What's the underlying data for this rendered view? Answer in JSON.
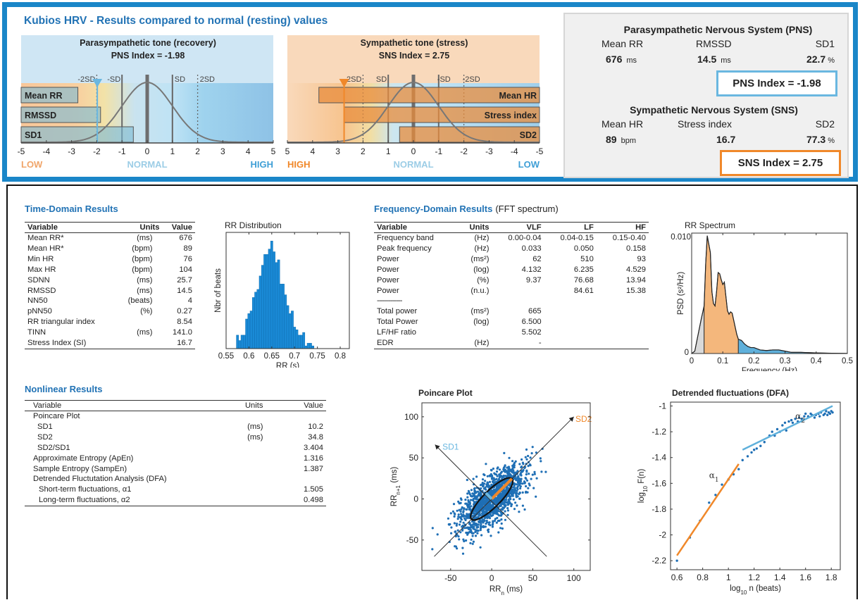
{
  "header": {
    "title": "Kubios HRV - Results compared to normal (resting) values"
  },
  "pns_gauge": {
    "title": "Parasympathetic tone (recovery)",
    "index_label": "PNS Index = -1.98",
    "index_value": -1.98,
    "axis": [
      "-5",
      "-4",
      "-3",
      "-2",
      "-1",
      "0",
      "1",
      "2",
      "3",
      "4",
      "5"
    ],
    "axis_range": [
      -5,
      5
    ],
    "sd_labels": [
      "-2SD",
      "-SD",
      "SD",
      "2SD"
    ],
    "bars": [
      {
        "label": "Mean RR",
        "value": -2.75
      },
      {
        "label": "RMSSD",
        "value": -1.85
      },
      {
        "label": "SD1",
        "value": -0.55
      }
    ],
    "low_label": "LOW",
    "normal_label": "NORMAL",
    "high_label": "HIGH",
    "accent": "#6ab7e0"
  },
  "sns_gauge": {
    "title": "Sympathetic tone (stress)",
    "index_label": "SNS Index = 2.75",
    "index_value": 2.75,
    "axis": [
      "5",
      "4",
      "3",
      "2",
      "1",
      "0",
      "-1",
      "-2",
      "-3",
      "-4",
      "-5"
    ],
    "axis_range": [
      5,
      -5
    ],
    "sd_labels": [
      "2SD",
      "SD",
      "-SD",
      "-2SD"
    ],
    "bars": [
      {
        "label": "Mean HR",
        "value": 3.75
      },
      {
        "label": "Stress index",
        "value": 2.75
      },
      {
        "label": "SD2",
        "value": 0.55
      }
    ],
    "high_label": "HIGH",
    "normal_label": "NORMAL",
    "low_label": "LOW",
    "accent": "#f0882a"
  },
  "summary": {
    "pns_heading": "Parasympathetic Nervous System (PNS)",
    "pns_labels": [
      "Mean RR",
      "RMSSD",
      "SD1"
    ],
    "pns_values": [
      {
        "value": "676",
        "unit": "ms"
      },
      {
        "value": "14.5",
        "unit": "ms"
      },
      {
        "value": "22.7",
        "unit": "%"
      }
    ],
    "pns_index": "PNS Index = -1.98",
    "sns_heading": "Sympathetic Nervous System (SNS)",
    "sns_labels": [
      "Mean HR",
      "Stress index",
      "SD2"
    ],
    "sns_values": [
      {
        "value": "89",
        "unit": "bpm"
      },
      {
        "value": "16.7",
        "unit": ""
      },
      {
        "value": "77.3",
        "unit": "%"
      }
    ],
    "sns_index": "SNS Index = 2.75",
    "pns_color": "#6ab7e0",
    "sns_color": "#f0882a"
  },
  "time_domain": {
    "title": "Time-Domain Results",
    "headers": [
      "Variable",
      "Units",
      "Value"
    ],
    "rows": [
      [
        "Mean RR*",
        "(ms)",
        "676"
      ],
      [
        "Mean HR*",
        "(bpm)",
        "89"
      ],
      [
        "Min HR",
        "(bpm)",
        "76"
      ],
      [
        "Max HR",
        "(bpm)",
        "104"
      ],
      [
        "SDNN",
        "(ms)",
        "25.7"
      ],
      [
        "RMSSD",
        "(ms)",
        "14.5"
      ],
      [
        "NN50",
        "(beats)",
        "4"
      ],
      [
        "pNN50",
        "(%)",
        "0.27"
      ],
      [
        "RR triangular index",
        "",
        "8.54"
      ],
      [
        "TINN",
        "(ms)",
        "141.0"
      ],
      [
        "Stress Index (SI)",
        "",
        "16.7"
      ]
    ]
  },
  "frequency_domain": {
    "title": "Frequency-Domain Results",
    "subtitle": "(FFT spectrum)",
    "headers": [
      "Variable",
      "Units",
      "VLF",
      "LF",
      "HF"
    ],
    "rows": [
      [
        "Frequency band",
        "(Hz)",
        "0.00-0.04",
        "0.04-0.15",
        "0.15-0.40"
      ],
      [
        "Peak frequency",
        "(Hz)",
        "0.033",
        "0.050",
        "0.158"
      ],
      [
        "Power",
        "(ms²)",
        "62",
        "510",
        "93"
      ],
      [
        "Power",
        "(log)",
        "4.132",
        "6.235",
        "4.529"
      ],
      [
        "Power",
        "(%)",
        "9.37",
        "76.68",
        "13.94"
      ],
      [
        "Power",
        "(n.u.)",
        "",
        "84.61",
        "15.38"
      ],
      [
        "-------------",
        "",
        "",
        "",
        ""
      ],
      [
        "Total power",
        "(ms²)",
        "665",
        "",
        ""
      ],
      [
        "Total Power",
        "(log)",
        "6.500",
        "",
        ""
      ],
      [
        "LF/HF ratio",
        "",
        "5.502",
        "",
        ""
      ],
      [
        "EDR",
        "(Hz)",
        "-",
        "",
        ""
      ]
    ]
  },
  "nonlinear": {
    "title": "Nonlinear Results",
    "headers": [
      "Variable",
      "Units",
      "Value"
    ],
    "rows": [
      [
        "Poincare Plot",
        "",
        ""
      ],
      [
        "  SD1",
        "(ms)",
        "10.2"
      ],
      [
        "  SD2",
        "(ms)",
        "34.8"
      ],
      [
        "  SD2/SD1",
        "",
        "3.404"
      ],
      [
        "Approximate Entropy (ApEn)",
        "",
        "1.316"
      ],
      [
        "Sample Entropy (SampEn)",
        "",
        "1.387"
      ],
      [
        "Detrended Fluctutation Analysis (DFA)",
        "",
        ""
      ],
      [
        "  Short-term fluctuations, α1",
        "",
        "1.505"
      ],
      [
        "  Long-term fluctuations, α2",
        "",
        "0.498"
      ]
    ]
  },
  "chart_data": [
    {
      "id": "rr-distribution",
      "type": "bar",
      "title": "RR Distribution",
      "xlabel": "RR (s)",
      "ylabel": "Nbr of beats",
      "xlim": [
        0.55,
        0.82
      ],
      "xticks": [
        "0.55",
        "0.6",
        "0.65",
        "0.7",
        "0.75",
        "0.8"
      ],
      "xtick_values": [
        0.55,
        0.6,
        0.65,
        0.7,
        0.75,
        0.8
      ],
      "bin_start": 0.5725,
      "bin_width": 0.005,
      "values": [
        5,
        3,
        5,
        5,
        11,
        13,
        14,
        19,
        21,
        22,
        27,
        31,
        35,
        35,
        37,
        40,
        36,
        32,
        33,
        24,
        24,
        20,
        16,
        13,
        14,
        8,
        7,
        5,
        5,
        6,
        1,
        2,
        2,
        1
      ],
      "bar_color": "#1a8ad6"
    },
    {
      "id": "rr-spectrum",
      "type": "area",
      "title": "RR Spectrum",
      "xlabel": "Frequency (Hz)",
      "ylabel": "PSD (s²/Hz)",
      "xlim": [
        0,
        0.5
      ],
      "ylim": [
        0,
        0.01
      ],
      "xticks": [
        "0",
        "0.1",
        "0.2",
        "0.3",
        "0.4",
        "0.5"
      ],
      "yticks": [
        "0",
        "0.010"
      ],
      "x": [
        0,
        0.01,
        0.02,
        0.03,
        0.04,
        0.045,
        0.05,
        0.055,
        0.06,
        0.065,
        0.07,
        0.075,
        0.08,
        0.085,
        0.09,
        0.095,
        0.1,
        0.105,
        0.11,
        0.115,
        0.12,
        0.125,
        0.13,
        0.135,
        0.14,
        0.145,
        0.15,
        0.16,
        0.17,
        0.18,
        0.19,
        0.2,
        0.22,
        0.24,
        0.26,
        0.28,
        0.3,
        0.32,
        0.35,
        0.4,
        0.45,
        0.5
      ],
      "y": [
        0,
        0.0002,
        0.0015,
        0.0028,
        0.004,
        0.0075,
        0.0099,
        0.0092,
        0.0085,
        0.0052,
        0.0042,
        0.004,
        0.0052,
        0.0068,
        0.0067,
        0.0062,
        0.0058,
        0.006,
        0.0048,
        0.0036,
        0.0033,
        0.0035,
        0.0034,
        0.0028,
        0.0022,
        0.0016,
        0.0012,
        0.0011,
        0.0008,
        0.0006,
        0.0005,
        0.0005,
        0.0003,
        0.00025,
        0.0003,
        0.0003,
        0.0002,
        0.0001,
        0.0001,
        5e-05,
        2e-05,
        1e-05
      ],
      "bands": [
        {
          "name": "VLF",
          "range": [
            0,
            0.04
          ],
          "color": "#d9d9d9"
        },
        {
          "name": "LF",
          "range": [
            0.04,
            0.15
          ],
          "color": "#f4b77c"
        },
        {
          "name": "HF",
          "range": [
            0.15,
            0.5
          ],
          "color": "#5fb0db"
        }
      ]
    },
    {
      "id": "poincare-plot",
      "type": "scatter",
      "title": "Poincare Plot",
      "xlabel": "RRn (ms)",
      "ylabel": "RRn+1 (ms)",
      "xlim": [
        -85,
        120
      ],
      "ylim": [
        -87,
        117
      ],
      "xticks": [
        "-50",
        "0",
        "50",
        "100"
      ],
      "yticks": [
        "-50",
        "0",
        "50",
        "100"
      ],
      "sd1": 10.2,
      "sd2": 34.8,
      "sd1_label": "SD1",
      "sd2_label": "SD2",
      "point_count": 1400,
      "point_color": "#1f6fb5",
      "sd1_color": "#6ab7e0",
      "sd2_color": "#f0882a"
    },
    {
      "id": "dfa-plot",
      "type": "scatter",
      "title": "Detrended fluctuations (DFA)",
      "xlabel": "log10 n (beats)",
      "ylabel": "log10 F(n)",
      "xlim": [
        0.55,
        1.87
      ],
      "ylim": [
        -2.27,
        -0.97
      ],
      "xticks": [
        "0.6",
        "0.8",
        "1",
        "1.2",
        "1.4",
        "1.6",
        "1.8"
      ],
      "yticks": [
        "-1",
        "-1.2",
        "-1.4",
        "-1.6",
        "-1.8",
        "-2",
        "-2.2"
      ],
      "x": [
        0.6,
        0.7,
        0.78,
        0.85,
        0.9,
        0.95,
        1.0,
        1.04,
        1.08,
        1.11,
        1.15,
        1.18,
        1.2,
        1.22,
        1.25,
        1.28,
        1.32,
        1.34,
        1.36,
        1.38,
        1.4,
        1.42,
        1.44,
        1.45,
        1.47,
        1.49,
        1.5,
        1.52,
        1.54,
        1.55,
        1.57,
        1.59,
        1.6,
        1.62,
        1.64,
        1.65,
        1.67,
        1.68,
        1.7,
        1.71,
        1.72,
        1.74,
        1.75,
        1.76,
        1.77,
        1.78,
        1.79,
        1.8,
        1.81
      ],
      "y": [
        -2.2,
        -2.02,
        -1.89,
        -1.75,
        -1.69,
        -1.61,
        -1.57,
        -1.53,
        -1.49,
        -1.42,
        -1.39,
        -1.36,
        -1.34,
        -1.33,
        -1.31,
        -1.28,
        -1.23,
        -1.2,
        -1.23,
        -1.18,
        -1.2,
        -1.15,
        -1.13,
        -1.19,
        -1.12,
        -1.11,
        -1.13,
        -1.1,
        -1.12,
        -1.09,
        -1.1,
        -1.08,
        -1.06,
        -1.08,
        -1.06,
        -1.07,
        -1.09,
        -1.07,
        -1.06,
        -1.08,
        -1.05,
        -1.07,
        -1.06,
        -1.04,
        -1.07,
        -1.05,
        -1.06,
        -1.04,
        -1.05
      ],
      "alpha1_fit": {
        "x": [
          0.6,
          1.08
        ],
        "y": [
          -2.16,
          -1.45
        ],
        "color": "#f0882a",
        "label": "α1"
      },
      "alpha2_fit": {
        "x": [
          1.11,
          1.81
        ],
        "y": [
          -1.34,
          -1.0
        ],
        "color": "#5fb0db",
        "label": "α2"
      },
      "point_color": "#1f6fb5"
    }
  ]
}
